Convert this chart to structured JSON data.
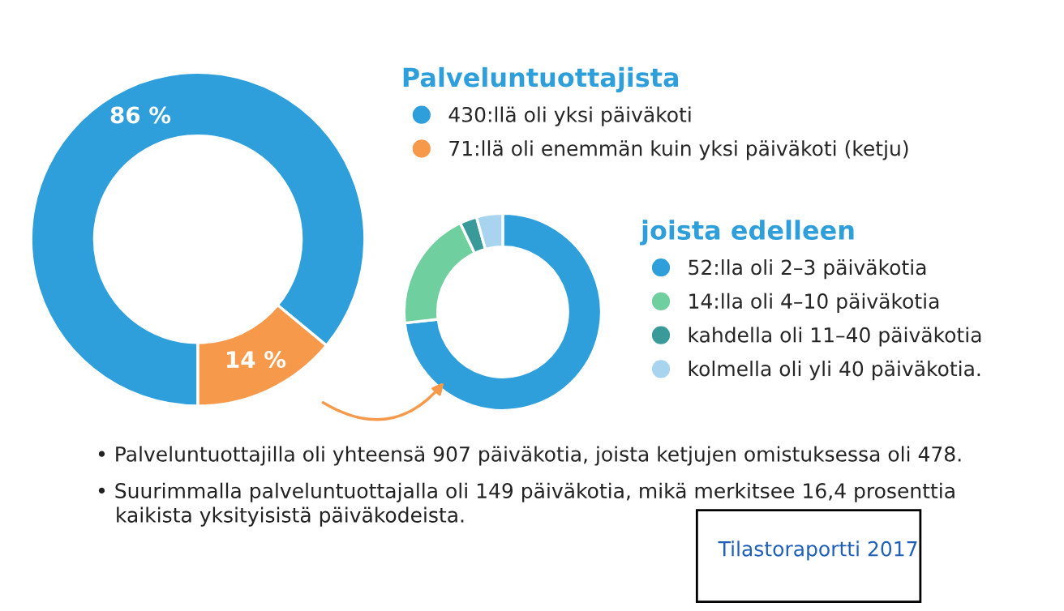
{
  "chart_data": [
    {
      "type": "donut",
      "legend_title": "Palveluntuottajista",
      "legend": "right",
      "categories": [
        "430:llä oli yksi päiväkoti",
        "71:llä oli enemmän kuin yksi päiväkoti (ketju)"
      ],
      "values": [
        86,
        14
      ],
      "value_labels": [
        "86 %",
        "14 %"
      ],
      "colors": [
        "#2e9fdb",
        "#f7994a"
      ],
      "annotations": [
        "• Palveluntuottajilla oli yhteensä 907 päiväkotia, joista ketjujen omistuksessa oli 478.",
        "• Suurimmalla palveluntuottajalla oli 149 päiväkotia, mikä merkitsee 16,4 prosenttia\n   kaikista yksityisistä päiväkodeista.",
        "Tilastoraportti 2017"
      ]
    },
    {
      "type": "donut",
      "legend_title": "joista edelleen",
      "legend": "right",
      "categories": [
        "52:lla oli 2–3 päiväkotia",
        "14:lla oli 4–10 päiväkotia",
        "kahdella oli 11–40 päiväkotia",
        "kolmella oli yli 40 päiväkotia."
      ],
      "values": [
        73.2,
        19.7,
        2.8,
        4.3
      ],
      "colors": [
        "#2e9fdb",
        "#6fcf9f",
        "#3a9a9a",
        "#a8d4ef"
      ]
    }
  ]
}
